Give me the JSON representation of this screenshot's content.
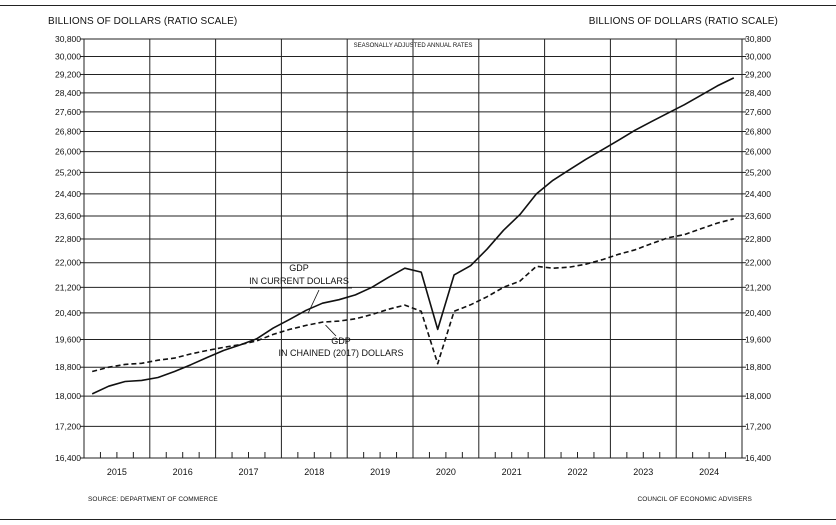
{
  "header": {
    "ylabel_left": "BILLIONS OF DOLLARS (RATIO SCALE)",
    "ylabel_right": "BILLIONS OF DOLLARS (RATIO SCALE)"
  },
  "footer": {
    "source": "SOURCE: DEPARTMENT OF COMMERCE",
    "credit": "COUNCIL OF ECONOMIC ADVISERS"
  },
  "colors": {
    "line": "#111111",
    "grid": "#222222"
  },
  "chart_data": {
    "type": "line",
    "subtitle": "SEASONALLY ADJUSTED ANNUAL RATES",
    "y_scale": "log",
    "ylim": [
      16400,
      30800
    ],
    "y_ticks": [
      16400,
      17200,
      18000,
      18800,
      19600,
      20400,
      21200,
      22000,
      22800,
      23600,
      24400,
      25200,
      26000,
      26800,
      27600,
      28400,
      29200,
      30000,
      30800
    ],
    "y_tick_labels": [
      "16,400",
      "17,200",
      "18,000",
      "18,800",
      "19,600",
      "20,400",
      "21,200",
      "22,000",
      "22,800",
      "23,600",
      "24,400",
      "25,200",
      "26,000",
      "26,800",
      "27,600",
      "28,400",
      "29,200",
      "30,000",
      "30,800"
    ],
    "x_range": [
      2015,
      2025
    ],
    "x_tick_labels": [
      "2015",
      "2016",
      "2017",
      "2018",
      "2019",
      "2020",
      "2021",
      "2022",
      "2023",
      "2024"
    ],
    "grid": true,
    "x": [
      "2015 Q1",
      "2015 Q2",
      "2015 Q3",
      "2015 Q4",
      "2016 Q1",
      "2016 Q2",
      "2016 Q3",
      "2016 Q4",
      "2017 Q1",
      "2017 Q2",
      "2017 Q3",
      "2017 Q4",
      "2018 Q1",
      "2018 Q2",
      "2018 Q3",
      "2018 Q4",
      "2019 Q1",
      "2019 Q2",
      "2019 Q3",
      "2019 Q4",
      "2020 Q1",
      "2020 Q2",
      "2020 Q3",
      "2020 Q4",
      "2021 Q1",
      "2021 Q2",
      "2021 Q3",
      "2021 Q4",
      "2022 Q1",
      "2022 Q2",
      "2022 Q3",
      "2022 Q4",
      "2023 Q1",
      "2023 Q2",
      "2023 Q3",
      "2023 Q4",
      "2024 Q1",
      "2024 Q2",
      "2024 Q3",
      "2024 Q4"
    ],
    "series": [
      {
        "name": "GDP IN CURRENT DOLLARS",
        "style": "solid",
        "values": [
          18060,
          18270,
          18400,
          18430,
          18510,
          18680,
          18870,
          19080,
          19280,
          19440,
          19620,
          19940,
          20200,
          20480,
          20700,
          20810,
          20960,
          21200,
          21520,
          21820,
          21690,
          19900,
          21600,
          21900,
          22450,
          23100,
          23650,
          24400,
          24900,
          25300,
          25700,
          26070,
          26450,
          26850,
          27200,
          27550,
          27900,
          28300,
          28700,
          29050
        ]
      },
      {
        "name": "GDP IN CHAINED (2017) DOLLARS",
        "style": "dashed",
        "values": [
          18680,
          18800,
          18880,
          18910,
          19000,
          19060,
          19180,
          19280,
          19370,
          19450,
          19560,
          19750,
          19900,
          20020,
          20120,
          20150,
          20220,
          20350,
          20510,
          20640,
          20450,
          18900,
          20450,
          20650,
          20900,
          21200,
          21400,
          21880,
          21820,
          21850,
          21950,
          22100,
          22280,
          22430,
          22640,
          22840,
          22950,
          23150,
          23350,
          23500
        ]
      }
    ],
    "annotations": [
      {
        "text": [
          "GDP",
          "IN CURRENT DOLLARS"
        ],
        "series": 0
      },
      {
        "text": [
          "GDP",
          "IN CHAINED (2017) DOLLARS"
        ],
        "series": 1
      }
    ]
  }
}
